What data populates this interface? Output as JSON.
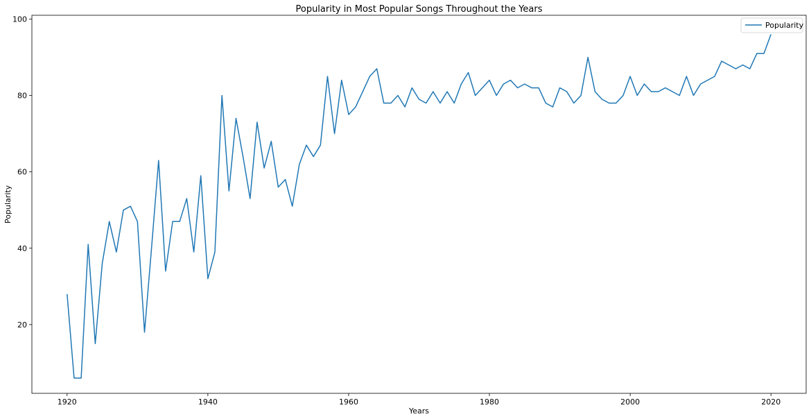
{
  "chart_data": {
    "type": "line",
    "title": "Popularity in Most Popular Songs Throughout the Years",
    "xlabel": "Years",
    "ylabel": "Popularity",
    "xlim": [
      1915,
      2025
    ],
    "ylim": [
      2,
      101
    ],
    "xticks": [
      1920,
      1940,
      1960,
      1980,
      2000,
      2020
    ],
    "yticks": [
      20,
      40,
      60,
      80,
      100
    ],
    "grid": false,
    "legend_position": "top-right",
    "series": [
      {
        "name": "Popularity",
        "color": "#1f77b4",
        "x": [
          1920,
          1921,
          1922,
          1923,
          1924,
          1925,
          1926,
          1927,
          1928,
          1929,
          1930,
          1931,
          1932,
          1933,
          1934,
          1935,
          1936,
          1937,
          1938,
          1939,
          1940,
          1941,
          1942,
          1943,
          1944,
          1945,
          1946,
          1947,
          1948,
          1949,
          1950,
          1951,
          1952,
          1953,
          1954,
          1955,
          1956,
          1957,
          1958,
          1959,
          1960,
          1961,
          1962,
          1963,
          1964,
          1965,
          1966,
          1967,
          1968,
          1969,
          1970,
          1971,
          1972,
          1973,
          1974,
          1975,
          1976,
          1977,
          1978,
          1979,
          1980,
          1981,
          1982,
          1983,
          1984,
          1985,
          1986,
          1987,
          1988,
          1989,
          1990,
          1991,
          1992,
          1993,
          1994,
          1995,
          1996,
          1997,
          1998,
          1999,
          2000,
          2001,
          2002,
          2003,
          2004,
          2005,
          2006,
          2007,
          2008,
          2009,
          2010,
          2011,
          2012,
          2013,
          2014,
          2015,
          2016,
          2017,
          2018,
          2019,
          2020
        ],
        "y": [
          28,
          6,
          6,
          41,
          15,
          36,
          47,
          39,
          50,
          51,
          47,
          18,
          40,
          63,
          34,
          47,
          47,
          53,
          39,
          59,
          32,
          39,
          80,
          55,
          74,
          64,
          53,
          73,
          61,
          68,
          56,
          58,
          51,
          62,
          67,
          64,
          67,
          85,
          70,
          84,
          75,
          77,
          81,
          85,
          87,
          78,
          78,
          80,
          77,
          82,
          79,
          78,
          81,
          78,
          81,
          78,
          83,
          86,
          80,
          82,
          84,
          80,
          83,
          84,
          82,
          83,
          82,
          82,
          78,
          77,
          82,
          81,
          78,
          80,
          90,
          81,
          79,
          78,
          78,
          80,
          85,
          80,
          83,
          81,
          81,
          82,
          81,
          80,
          85,
          80,
          83,
          84,
          85,
          89,
          88,
          87,
          88,
          87,
          91,
          91,
          96
        ]
      }
    ]
  }
}
